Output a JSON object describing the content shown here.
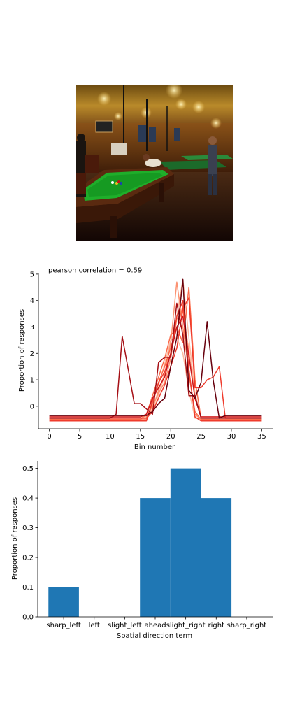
{
  "chart_data": [
    {
      "type": "line",
      "title": "pearson correlation = 0.59",
      "xlabel": "Bin number",
      "ylabel": "Proportion of responses",
      "xlim": [
        -1.8,
        36.8
      ],
      "ylim": [
        -0.85,
        5.05
      ],
      "xticks": [
        0,
        5,
        10,
        15,
        20,
        25,
        30,
        35
      ],
      "yticks": [
        0,
        1,
        2,
        3,
        4,
        5
      ],
      "grid": false,
      "legend": "none",
      "series_colors": [
        "#fcbba1",
        "#fc9272",
        "#fb6a4a",
        "#ef3b2c",
        "#cb181d",
        "#a50f15",
        "#67000d"
      ],
      "series": [
        {
          "color": "#fcbba1",
          "points": [
            [
              0,
              -0.45
            ],
            [
              16,
              -0.45
            ],
            [
              17,
              -0.2
            ],
            [
              18,
              0.4
            ],
            [
              19,
              1.2
            ],
            [
              20,
              2.0
            ],
            [
              21,
              3.4
            ],
            [
              22,
              4.8
            ],
            [
              23,
              2.6
            ],
            [
              24,
              0.5
            ],
            [
              25,
              -0.45
            ],
            [
              35,
              -0.45
            ]
          ]
        },
        {
          "color": "#fcbba1",
          "points": [
            [
              0,
              -0.45
            ],
            [
              16,
              -0.45
            ],
            [
              17,
              0.2
            ],
            [
              18,
              0.8
            ],
            [
              19,
              1.6
            ],
            [
              20,
              2.5
            ],
            [
              21,
              2.6
            ],
            [
              22,
              2.0
            ],
            [
              23,
              0.6
            ],
            [
              24,
              -0.45
            ],
            [
              35,
              -0.45
            ]
          ]
        },
        {
          "color": "#fc9272",
          "points": [
            [
              0,
              -0.5
            ],
            [
              16,
              -0.5
            ],
            [
              17,
              -0.1
            ],
            [
              18,
              0.6
            ],
            [
              19,
              1.2
            ],
            [
              20,
              2.4
            ],
            [
              21,
              4.7
            ],
            [
              22,
              3.0
            ],
            [
              23,
              1.3
            ],
            [
              24,
              -0.3
            ],
            [
              25,
              -0.5
            ],
            [
              35,
              -0.5
            ]
          ]
        },
        {
          "color": "#fc9272",
          "points": [
            [
              0,
              -0.4
            ],
            [
              16,
              -0.4
            ],
            [
              17,
              0.0
            ],
            [
              18,
              0.5
            ],
            [
              19,
              0.9
            ],
            [
              20,
              1.8
            ],
            [
              21,
              3.3
            ],
            [
              22,
              3.6
            ],
            [
              23,
              2.1
            ],
            [
              24,
              0.3
            ],
            [
              25,
              -0.4
            ],
            [
              35,
              -0.4
            ]
          ]
        },
        {
          "color": "#fb6a4a",
          "points": [
            [
              0,
              -0.45
            ],
            [
              16,
              -0.45
            ],
            [
              17,
              0.1
            ],
            [
              18,
              0.9
            ],
            [
              19,
              1.5
            ],
            [
              20,
              2.2
            ],
            [
              21,
              3.0
            ],
            [
              22,
              2.4
            ],
            [
              23,
              4.5
            ],
            [
              24,
              1.0
            ],
            [
              25,
              -0.45
            ],
            [
              35,
              -0.45
            ]
          ]
        },
        {
          "color": "#fb6a4a",
          "points": [
            [
              0,
              -0.5
            ],
            [
              15,
              -0.5
            ],
            [
              16,
              -0.3
            ],
            [
              17,
              0.4
            ],
            [
              18,
              1.1
            ],
            [
              19,
              1.8
            ],
            [
              20,
              2.7
            ],
            [
              21,
              2.9
            ],
            [
              22,
              3.8
            ],
            [
              23,
              1.2
            ],
            [
              24,
              -0.2
            ],
            [
              25,
              -0.5
            ],
            [
              35,
              -0.5
            ]
          ]
        },
        {
          "color": "#ef3b2c",
          "points": [
            [
              0,
              -0.45
            ],
            [
              16,
              -0.45
            ],
            [
              17,
              -0.2
            ],
            [
              18,
              0.3
            ],
            [
              19,
              0.8
            ],
            [
              20,
              1.5
            ],
            [
              21,
              2.2
            ],
            [
              22,
              3.7
            ],
            [
              23,
              4.1
            ],
            [
              24,
              0.7
            ],
            [
              25,
              0.7
            ],
            [
              26,
              1.0
            ],
            [
              27,
              1.1
            ],
            [
              28,
              1.5
            ],
            [
              29,
              -0.45
            ],
            [
              35,
              -0.45
            ]
          ]
        },
        {
          "color": "#ef3b2c",
          "points": [
            [
              0,
              -0.55
            ],
            [
              16,
              -0.55
            ],
            [
              17,
              0.2
            ],
            [
              18,
              0.9
            ],
            [
              19,
              1.3
            ],
            [
              20,
              2.0
            ],
            [
              21,
              3.4
            ],
            [
              22,
              4.0
            ],
            [
              23,
              1.4
            ],
            [
              24,
              -0.4
            ],
            [
              25,
              -0.55
            ],
            [
              35,
              -0.55
            ]
          ]
        },
        {
          "color": "#cb181d",
          "points": [
            [
              0,
              -0.4
            ],
            [
              15,
              -0.4
            ],
            [
              16,
              -0.3
            ],
            [
              17,
              0.3
            ],
            [
              18,
              0.7
            ],
            [
              19,
              1.1
            ],
            [
              20,
              2.0
            ],
            [
              21,
              3.0
            ],
            [
              22,
              3.4
            ],
            [
              23,
              1.9
            ],
            [
              24,
              0.3
            ],
            [
              25,
              -0.4
            ],
            [
              35,
              -0.4
            ]
          ]
        },
        {
          "color": "#a50f15",
          "points": [
            [
              0,
              -0.45
            ],
            [
              10,
              -0.45
            ],
            [
              11,
              -0.3
            ],
            [
              12,
              2.65
            ],
            [
              13,
              1.4
            ],
            [
              14,
              0.1
            ],
            [
              15,
              0.1
            ],
            [
              16,
              -0.1
            ],
            [
              17,
              -0.3
            ],
            [
              18,
              1.65
            ],
            [
              19,
              1.85
            ],
            [
              20,
              1.85
            ],
            [
              21,
              3.9
            ],
            [
              22,
              2.7
            ],
            [
              23,
              0.4
            ],
            [
              24,
              0.4
            ],
            [
              25,
              -0.45
            ],
            [
              35,
              -0.45
            ]
          ]
        },
        {
          "color": "#67000d",
          "points": [
            [
              0,
              -0.35
            ],
            [
              15,
              -0.35
            ],
            [
              16,
              -0.35
            ],
            [
              17,
              -0.2
            ],
            [
              18,
              0.1
            ],
            [
              19,
              0.3
            ],
            [
              20,
              1.5
            ],
            [
              21,
              2.6
            ],
            [
              22,
              4.8
            ],
            [
              23,
              0.6
            ],
            [
              24,
              0.3
            ],
            [
              25,
              0.9
            ],
            [
              26,
              3.2
            ],
            [
              27,
              1.0
            ],
            [
              28,
              -0.45
            ],
            [
              29,
              -0.35
            ],
            [
              35,
              -0.35
            ]
          ]
        }
      ]
    },
    {
      "type": "bar",
      "xlabel": "Spatial direction term",
      "ylabel": "Proportion of responses",
      "categories": [
        "sharp_left",
        "left",
        "slight_left",
        "ahead",
        "slight_right",
        "right",
        "sharp_right"
      ],
      "values": [
        0.1,
        0.0,
        0.0,
        0.4,
        0.5,
        0.4,
        0.0
      ],
      "yticks": [
        "0.0",
        "0.1",
        "0.2",
        "0.3",
        "0.4",
        "0.5"
      ],
      "ylim": [
        0,
        0.525
      ],
      "grid": false,
      "legend": "none",
      "bar_color": "#1f77b4"
    }
  ]
}
